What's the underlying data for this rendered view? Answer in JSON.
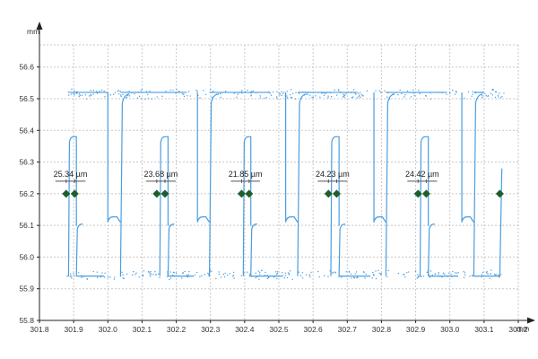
{
  "chart_data": {
    "type": "scatter",
    "title": "",
    "xlabel": "mm",
    "ylabel": "mm",
    "xlim": [
      301.8,
      303.2
    ],
    "ylim": [
      55.8,
      56.67
    ],
    "grid": true,
    "x_ticks": [
      301.8,
      301.9,
      302.0,
      302.1,
      302.2,
      302.3,
      302.4,
      302.5,
      302.6,
      302.7,
      302.8,
      302.9,
      303.0,
      303.1,
      303.2
    ],
    "x_tick_labels": [
      "301.8",
      "301.9",
      "302.0",
      "302.1",
      "302.2",
      "302.3",
      "302.4",
      "302.5",
      "302.6",
      "302.7",
      "302.8",
      "302.9",
      "303.0",
      "303.1",
      "303.2"
    ],
    "y_ticks": [
      55.8,
      55.9,
      56.0,
      56.1,
      56.2,
      56.3,
      56.4,
      56.5,
      56.6
    ],
    "y_tick_labels": [
      "55.8",
      "55.9",
      "56.0",
      "56.1",
      "56.2",
      "56.3",
      "56.4",
      "56.5",
      "56.6"
    ],
    "colors": {
      "profile": "#4a9ee0",
      "marker": "#1e5e2a",
      "grid": "#c8c8c8",
      "axis": "#222222"
    },
    "profile": {
      "top_y": 56.52,
      "bottom_y": 55.94,
      "upper_step_y": 56.38,
      "lower_step_y": 56.11,
      "teeth": [
        {
          "x_left": 301.885,
          "x_right": 301.908
        },
        {
          "x_left": 302.152,
          "x_right": 302.176
        },
        {
          "x_left": 302.396,
          "x_right": 302.418
        },
        {
          "x_left": 302.652,
          "x_right": 302.676
        },
        {
          "x_left": 302.913,
          "x_right": 302.937
        }
      ],
      "trailing_line": {
        "x_bottom": 303.146,
        "x_top": 303.152,
        "y_top": 56.28
      },
      "gaps": [
        {
          "x_left": 302.0,
          "x_right": 302.037
        },
        {
          "x_left": 302.262,
          "x_right": 302.297
        },
        {
          "x_left": 302.52,
          "x_right": 302.555
        },
        {
          "x_left": 302.778,
          "x_right": 302.813
        },
        {
          "x_left": 303.035,
          "x_right": 303.07
        }
      ]
    },
    "measurements": [
      {
        "label": "25.34 µm",
        "x1": 301.878,
        "x2": 301.903,
        "y": 56.2
      },
      {
        "label": "23.68 µm",
        "x1": 302.143,
        "x2": 302.167,
        "y": 56.2
      },
      {
        "label": "21.85 µm",
        "x1": 302.391,
        "x2": 302.413,
        "y": 56.2
      },
      {
        "label": "24.23 µm",
        "x1": 302.645,
        "x2": 302.669,
        "y": 56.2
      },
      {
        "label": "24.42 µm",
        "x1": 302.907,
        "x2": 302.931,
        "y": 56.2
      }
    ],
    "extra_marker": {
      "x": 303.146,
      "y": 56.2
    }
  }
}
